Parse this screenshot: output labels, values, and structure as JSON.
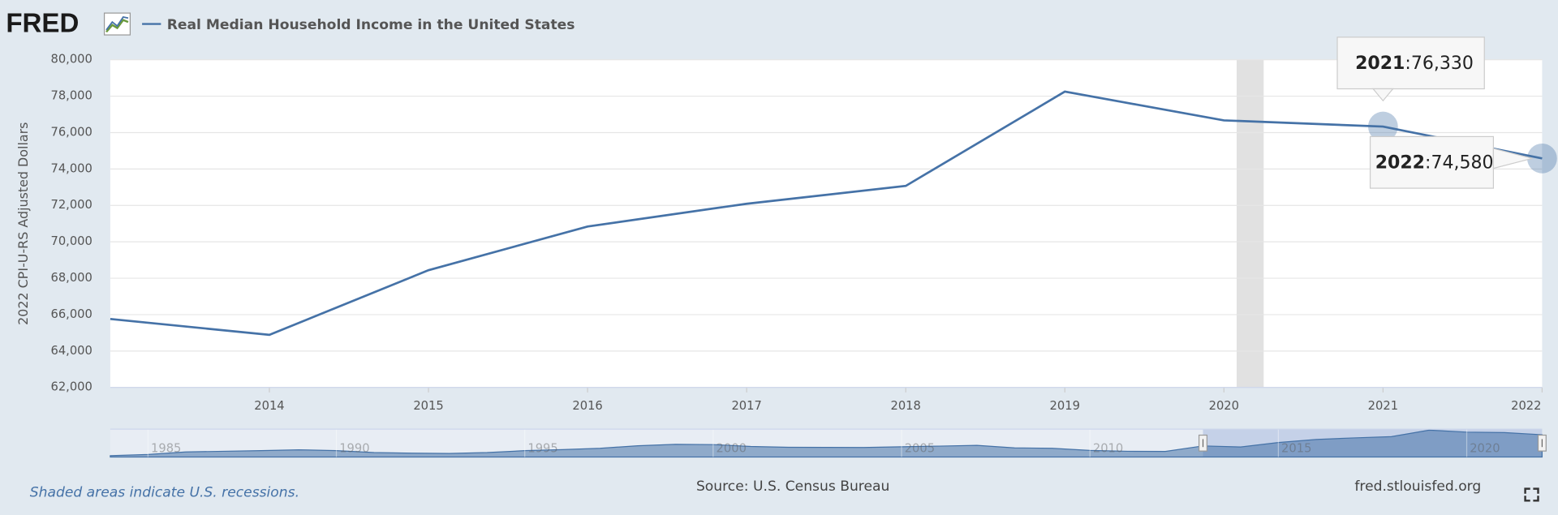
{
  "chart_data": {
    "type": "line",
    "logo": "FRED",
    "title": "Real Median Household Income in the United States",
    "y_label": "2022 CPI-U-RS Adjusted Dollars",
    "note": "Shaded areas indicate U.S. recessions.",
    "source": "Source: U.S. Census Bureau",
    "site": "fred.stlouisfed.org",
    "x": [
      2013,
      2014,
      2015,
      2016,
      2017,
      2018,
      2019,
      2020,
      2021,
      2022
    ],
    "series": [
      {
        "name": "Real Median Household Income in the United States",
        "color": "#4572a7",
        "values": [
          65760,
          64890,
          68440,
          70840,
          72090,
          73070,
          78250,
          76670,
          76330,
          74580
        ],
        "value_labels": [
          null,
          null,
          null,
          null,
          null,
          null,
          null,
          null,
          "76,330",
          "74,580"
        ]
      }
    ],
    "tooltip_separator": ":",
    "xlim": [
      2013,
      2022
    ],
    "xticks": [
      2014,
      2015,
      2016,
      2017,
      2018,
      2019,
      2020,
      2021,
      2022
    ],
    "ylim": [
      62000,
      80000
    ],
    "yticks": [
      {
        "value": 62000,
        "label": "62,000"
      },
      {
        "value": 64000,
        "label": "64,000"
      },
      {
        "value": 66000,
        "label": "66,000"
      },
      {
        "value": 68000,
        "label": "68,000"
      },
      {
        "value": 70000,
        "label": "70,000"
      },
      {
        "value": 72000,
        "label": "72,000"
      },
      {
        "value": 74000,
        "label": "74,000"
      },
      {
        "value": 76000,
        "label": "76,000"
      },
      {
        "value": 78000,
        "label": "78,000"
      },
      {
        "value": 80000,
        "label": "80,000"
      }
    ],
    "grid": true,
    "recessions": [
      [
        2020.08,
        2020.25
      ]
    ],
    "navigator": {
      "x": [
        1984,
        1985,
        1986,
        1987,
        1988,
        1989,
        1990,
        1991,
        1992,
        1993,
        1994,
        1995,
        1996,
        1997,
        1998,
        1999,
        2000,
        2001,
        2002,
        2003,
        2004,
        2005,
        2006,
        2007,
        2008,
        2009,
        2010,
        2011,
        2012
      ],
      "values": [
        58000,
        59000,
        61000,
        61500,
        62000,
        62700,
        62000,
        60500,
        60000,
        59800,
        60500,
        62000,
        62800,
        63900,
        65900,
        67000,
        66800,
        65300,
        64700,
        64600,
        64500,
        65100,
        65600,
        66200,
        64200,
        63900,
        62200,
        61500,
        61400
      ],
      "xlim": [
        1984,
        2022
      ],
      "ylim": [
        57000,
        79000
      ],
      "xticks": [
        1985,
        1990,
        1995,
        2000,
        2005,
        2010,
        2015,
        2020
      ]
    }
  }
}
